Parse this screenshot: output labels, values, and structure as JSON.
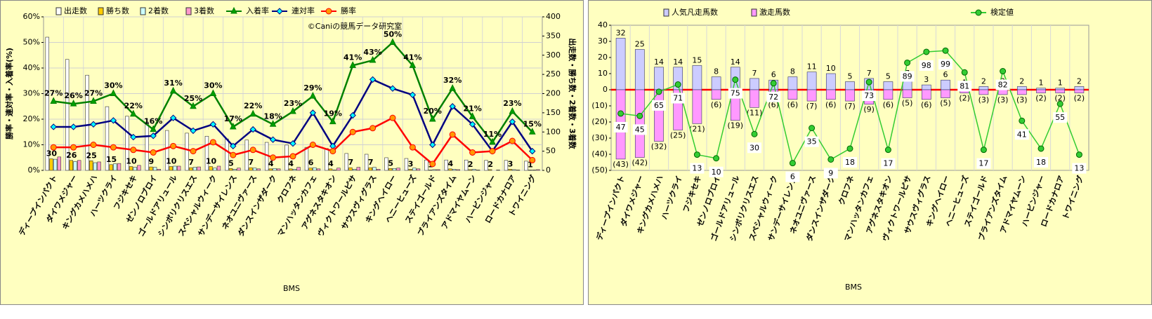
{
  "chart_data": [
    {
      "type": "bar_line",
      "watermark": "©Caniの競馬データ研究室",
      "x_label": "BMS",
      "y_label": "勝率・連対率・入着率(%)",
      "y2_label": "出走数・勝ち数・2着数・3着数",
      "categories": [
        "ディープインパクト",
        "ダイワメジャー",
        "キングカメハメハ",
        "ハーツクライ",
        "フジキセキ",
        "ゼンノロブロイ",
        "ゴールドアリュール",
        "シンボリクリスエス",
        "スペシャルウィーク",
        "サンデーサイレンス",
        "ネオユニヴァース",
        "ダンスインザダーク",
        "クロフネ",
        "マンハッタンカフェ",
        "アグネスタキオン",
        "ヴィクトワールピサ",
        "サウスヴィグラス",
        "キングヘイロー",
        "ヘニーヒューズ",
        "ステイゴールド",
        "ブライアンズタイム",
        "アドマイヤムーン",
        "ハービンジャー",
        "ロードカナロア",
        "トワイニング"
      ],
      "ylim": [
        0,
        60
      ],
      "yticks": [
        {
          "value": 0,
          "label": "0%"
        },
        {
          "value": 10,
          "label": "10%"
        },
        {
          "value": 20,
          "label": "20%"
        },
        {
          "value": 30,
          "label": "30%"
        },
        {
          "value": 40,
          "label": "40%"
        },
        {
          "value": 50,
          "label": "50%"
        },
        {
          "value": 60,
          "label": "60%"
        }
      ],
      "y2lim": [
        0,
        400
      ],
      "y2ticks": [
        0,
        50,
        100,
        150,
        200,
        250,
        300,
        350,
        400
      ],
      "grid": true,
      "series": [
        {
          "name": "出走数",
          "type": "bar",
          "axis": "y2",
          "color": "#ffffff",
          "values": [
            347,
            289,
            248,
            166,
            141,
            126,
            104,
            97,
            89,
            82,
            79,
            73,
            66,
            60,
            57,
            44,
            42,
            33,
            31,
            27,
            27,
            27,
            26,
            26,
            24
          ]
        },
        {
          "name": "勝ち数",
          "type": "bar",
          "axis": "y2",
          "color": "#ffcc00",
          "data_labels": true,
          "values": [
            30,
            26,
            25,
            15,
            10,
            9,
            10,
            7,
            10,
            5,
            7,
            4,
            4,
            6,
            4,
            7,
            7,
            5,
            3,
            1,
            4,
            2,
            2,
            3,
            1
          ]
        },
        {
          "name": "2着数",
          "type": "bar",
          "axis": "y2",
          "color": "#ccffff",
          "values": [
            29,
            23,
            20,
            17,
            8,
            8,
            11,
            8,
            6,
            3,
            6,
            5,
            3,
            7,
            1,
            3,
            8,
            5,
            6,
            2,
            3,
            3,
            0,
            2,
            1
          ]
        },
        {
          "name": "3着数",
          "type": "bar",
          "axis": "y2",
          "color": "#ff99cc",
          "values": [
            35,
            26,
            22,
            18,
            13,
            3,
            11,
            9,
            11,
            6,
            4,
            4,
            8,
            4,
            6,
            8,
            3,
            6,
            4,
            2,
            2,
            1,
            1,
            1,
            2
          ]
        },
        {
          "name": "入着率",
          "type": "line",
          "color": "#008000",
          "marker": "triangle",
          "marker_color": "#00a000",
          "values": [
            27,
            26,
            27,
            30,
            22,
            16,
            31,
            25,
            30,
            17,
            22,
            18,
            23,
            29,
            19,
            41,
            43,
            50,
            41,
            20,
            32,
            21,
            11,
            23,
            15
          ],
          "value_labels": [
            "27%",
            "26%",
            "27%",
            "30%",
            "22%",
            "16%",
            "31%",
            "25%",
            "30%",
            "17%",
            "22%",
            "18%",
            "23%",
            "29%",
            "19%",
            "41%",
            "43%",
            "50%",
            "41%",
            "20%",
            "32%",
            "21%",
            "11%",
            "23%",
            "15%"
          ]
        },
        {
          "name": "連対率",
          "type": "line",
          "color": "#000080",
          "marker": "diamond",
          "marker_color": "#00ffff",
          "values": [
            17,
            17,
            18,
            19.5,
            13,
            13.5,
            20.5,
            15.5,
            18,
            9.5,
            16,
            12,
            10.5,
            22.5,
            9.5,
            21.5,
            35.5,
            32,
            29.5,
            10,
            25,
            18,
            7.5,
            19,
            7.5
          ]
        },
        {
          "name": "勝率",
          "type": "line",
          "color": "#ff0000",
          "marker": "circle",
          "marker_color": "#ff9900",
          "values": [
            9,
            9,
            10,
            9,
            8,
            7,
            9.5,
            7.5,
            11,
            6,
            8,
            5,
            5.5,
            10,
            7.5,
            15,
            16.5,
            20.5,
            9,
            2.5,
            14,
            7,
            7.5,
            11.5,
            4
          ]
        }
      ]
    },
    {
      "type": "bar_line",
      "x_label": "BMS",
      "categories": [
        "ディープインパクト",
        "ダイワメジャー",
        "キングカメハメハ",
        "ハーツクライ",
        "フジキセキ",
        "ゼンノロブロイ",
        "ゴールドアリュール",
        "シンボリクリスエス",
        "スペシャルウィーク",
        "サンデーサイレンス",
        "ネオユニヴァース",
        "ダンスインザダーク",
        "クロフネ",
        "マンハッタンカフェ",
        "アグネスタキオン",
        "ヴィクトワールピサ",
        "サウスヴィグラス",
        "キングヘイロー",
        "ヘニーヒューズ",
        "ステイゴールド",
        "ブライアンズタイム",
        "アドマイヤムーン",
        "ハービンジャー",
        "ロードカナロア",
        "トワイニング"
      ],
      "ylim": [
        -50,
        40
      ],
      "yticks": [
        {
          "value": -50,
          "label": "(50)"
        },
        {
          "value": -40,
          "label": "(40)"
        },
        {
          "value": -30,
          "label": "(30)"
        },
        {
          "value": -20,
          "label": "(20)"
        },
        {
          "value": -10,
          "label": "(10)"
        },
        0,
        10,
        20,
        30,
        40
      ],
      "y2lim": [
        0,
        120
      ],
      "grid": false,
      "zero_line_color": "#ff0000",
      "series": [
        {
          "name": "人気凡走馬数",
          "type": "bar",
          "color": "#ccccff",
          "data_labels": true,
          "values": [
            32,
            25,
            14,
            14,
            15,
            8,
            14,
            7,
            6,
            8,
            11,
            10,
            5,
            7,
            5,
            7,
            3,
            6,
            1,
            2,
            2,
            2,
            1,
            1,
            2
          ]
        },
        {
          "name": "激走馬数",
          "type": "bar",
          "color": "#ff99ff",
          "label_color": "#ff0000",
          "values": [
            -43,
            -42,
            -32,
            -25,
            -21,
            -6,
            -19,
            -11,
            -6,
            -6,
            -7,
            -6,
            -7,
            -9,
            -6,
            -5,
            -6,
            -5,
            -2,
            -3,
            -3,
            -3,
            -2,
            -2,
            -2
          ],
          "value_labels": [
            "(43)",
            "(42)",
            "(32)",
            "(25)",
            "(21)",
            "(6)",
            "(19)",
            "(11)",
            "(6)",
            "(6)",
            "(7)",
            "(6)",
            "(7)",
            "(9)",
            "(6)",
            "(5)",
            "(6)",
            "(5)",
            "(2)",
            "(3)",
            "(3)",
            "(3)",
            "(2)",
            "(2)",
            "(2)"
          ]
        },
        {
          "name": "検定値",
          "type": "line",
          "axis": "y2",
          "color": "#33cc33",
          "marker": "circle",
          "marker_color": "#33cc33",
          "data_labels": true,
          "label_box": true,
          "label_color": "#008080",
          "values": [
            47,
            45,
            65,
            71,
            13,
            10,
            75,
            30,
            72,
            6,
            35,
            9,
            18,
            73,
            17,
            89,
            98,
            99,
            81,
            17,
            82,
            41,
            18,
            55,
            13
          ]
        }
      ]
    }
  ]
}
